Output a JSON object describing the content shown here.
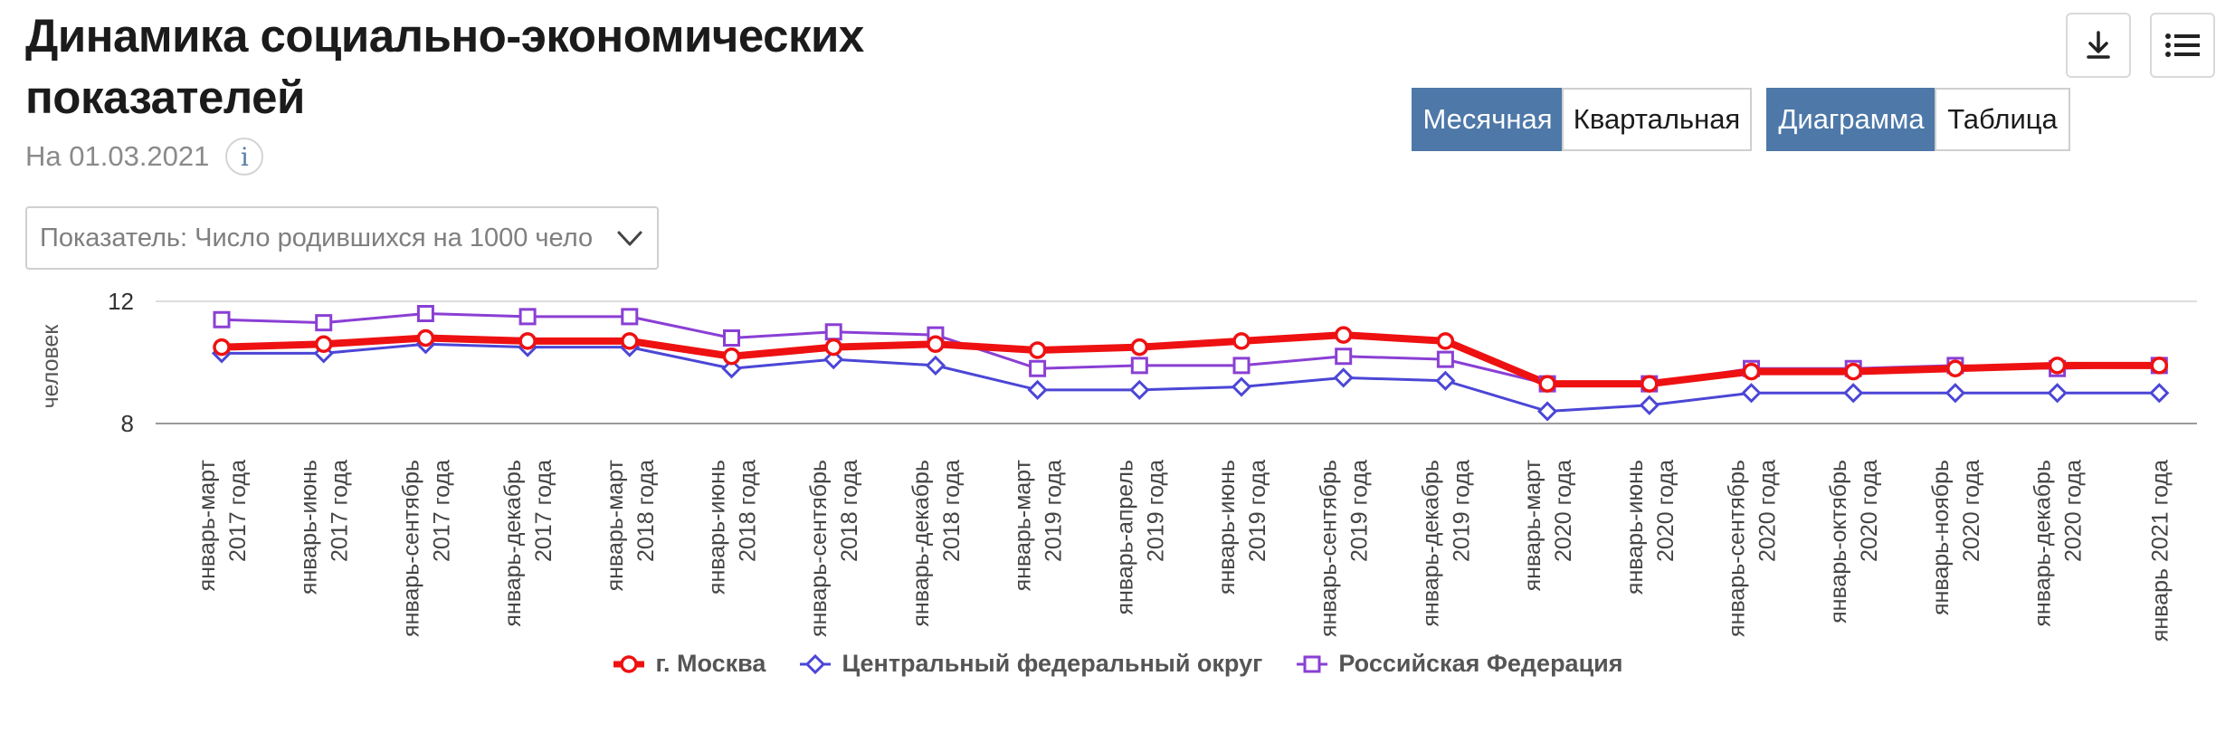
{
  "header": {
    "title": "Динамика социально-экономических показателей",
    "date": "На 01.03.2021",
    "info_symbol": "i"
  },
  "controls": {
    "indicator_value": "Показатель: Число родившихся на 1000 чело",
    "period": {
      "options": [
        "Месячная",
        "Квартальная"
      ],
      "selected": "Месячная"
    },
    "view": {
      "options": [
        "Диаграмма",
        "Таблица"
      ],
      "selected": "Диаграмма"
    },
    "icons": [
      "download-icon",
      "menu-list-icon"
    ]
  },
  "chart_data": {
    "type": "line",
    "ylabel": "человек",
    "ylim": [
      8,
      12
    ],
    "yticks": [
      8,
      12
    ],
    "grid": true,
    "legend_position": "bottom",
    "categories": [
      [
        "январь-март",
        "2017 года"
      ],
      [
        "январь-июнь",
        "2017 года"
      ],
      [
        "январь-сентябрь",
        "2017 года"
      ],
      [
        "январь-декабрь",
        "2017 года"
      ],
      [
        "январь-март",
        "2018 года"
      ],
      [
        "январь-июнь",
        "2018 года"
      ],
      [
        "январь-сентябрь",
        "2018 года"
      ],
      [
        "январь-декабрь",
        "2018 года"
      ],
      [
        "январь-март",
        "2019 года"
      ],
      [
        "январь-апрель",
        "2019 года"
      ],
      [
        "январь-июнь",
        "2019 года"
      ],
      [
        "январь-сентябрь",
        "2019 года"
      ],
      [
        "январь-декабрь",
        "2019 года"
      ],
      [
        "январь-март",
        "2020 года"
      ],
      [
        "январь-июнь",
        "2020 года"
      ],
      [
        "январь-сентябрь",
        "2020 года"
      ],
      [
        "январь-октябрь",
        "2020 года"
      ],
      [
        "январь-ноябрь",
        "2020 года"
      ],
      [
        "январь-декабрь",
        "2020 года"
      ],
      [
        "январь 2021 года"
      ]
    ],
    "series": [
      {
        "name": "г. Москва",
        "color": "#ee1111",
        "marker": "circle",
        "values": [
          10.5,
          10.6,
          10.8,
          10.7,
          10.7,
          10.2,
          10.5,
          10.6,
          10.4,
          10.5,
          10.7,
          10.9,
          10.7,
          9.3,
          9.3,
          9.7,
          9.7,
          9.8,
          9.9,
          9.9
        ]
      },
      {
        "name": "Центральный федеральный округ",
        "color": "#4b46d6",
        "marker": "diamond",
        "values": [
          10.3,
          10.3,
          10.6,
          10.5,
          10.5,
          9.8,
          10.1,
          9.9,
          9.1,
          9.1,
          9.2,
          9.5,
          9.4,
          8.4,
          8.6,
          9.0,
          9.0,
          9.0,
          9.0,
          9.0
        ]
      },
      {
        "name": "Российская Федерация",
        "color": "#8a3fd4",
        "marker": "square",
        "values": [
          11.4,
          11.3,
          11.6,
          11.5,
          11.5,
          10.8,
          11.0,
          10.9,
          9.8,
          9.9,
          9.9,
          10.2,
          10.1,
          9.3,
          9.3,
          9.8,
          9.8,
          9.9,
          9.8,
          9.9
        ]
      }
    ]
  }
}
